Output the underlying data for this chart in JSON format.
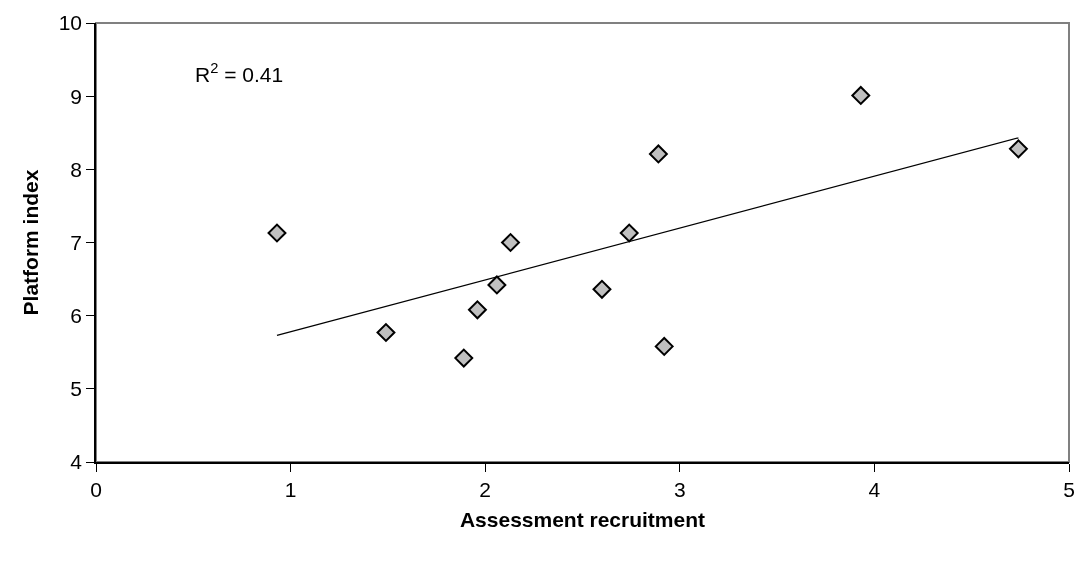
{
  "chart_data": {
    "type": "scatter",
    "xlabel": "Assessment recruitment",
    "ylabel": "Platform index",
    "xlim": [
      0,
      5
    ],
    "xticks": [
      0,
      1,
      2,
      3,
      4,
      5
    ],
    "ylim": [
      4,
      10
    ],
    "yticks": [
      4,
      5,
      6,
      7,
      8,
      9,
      10
    ],
    "grid": false,
    "marker": "diamond",
    "annotations": [
      "R$^{2}$ = 0.41"
    ],
    "series": [
      {
        "color": "#c0c0c0",
        "x": [
          0.93,
          1.49,
          1.89,
          1.96,
          2.06,
          2.13,
          2.6,
          2.74,
          2.89,
          2.92,
          3.93,
          4.74
        ],
        "values": [
          7.13,
          5.77,
          5.42,
          6.08,
          6.42,
          7.0,
          6.36,
          7.13,
          8.21,
          5.58,
          9.01,
          8.28
        ]
      },
      {
        "type": "line",
        "color": "#000000",
        "marker": "none",
        "line_style": "solid",
        "x": [
          0.93,
          4.74
        ],
        "values": [
          5.73,
          8.43
        ]
      }
    ]
  }
}
